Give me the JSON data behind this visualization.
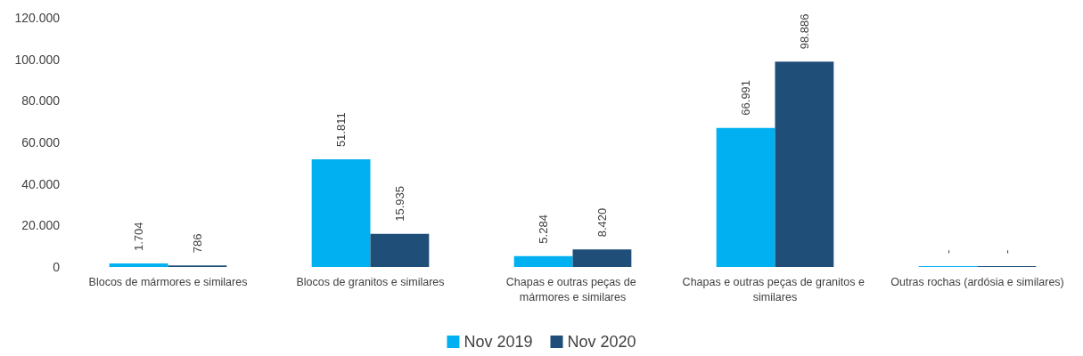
{
  "chart_data": {
    "type": "bar",
    "categories": [
      "Blocos de mármores e similares",
      "Blocos de granitos e similares",
      "Chapas e outras peças de mármores e similares",
      "Chapas e outras peças de granitos e similares",
      "Outras rochas (ardósia e similares)"
    ],
    "series": [
      {
        "name": "Nov 2019",
        "color": "#00b0f0",
        "values": [
          1704,
          51811,
          5284,
          66991,
          0
        ],
        "value_labels": [
          "1.704",
          "51.811",
          "5.284",
          "66.991",
          "-"
        ]
      },
      {
        "name": "Nov 2020",
        "color": "#1f4e79",
        "values": [
          786,
          15935,
          8420,
          98886,
          0
        ],
        "value_labels": [
          "786",
          "15.935",
          "8.420",
          "98.886",
          "-"
        ]
      }
    ],
    "ylim": [
      0,
      120000
    ],
    "yticks": [
      0,
      {
        "value": 20000,
        "label": "20.000"
      },
      {
        "value": 40000,
        "label": "40.000"
      },
      {
        "value": 60000,
        "label": "60.000"
      },
      {
        "value": 80000,
        "label": "80.000"
      },
      {
        "value": 100000,
        "label": "100.000"
      },
      {
        "value": 120000,
        "label": "120.000"
      }
    ],
    "grid": false,
    "legend": "bottom"
  }
}
